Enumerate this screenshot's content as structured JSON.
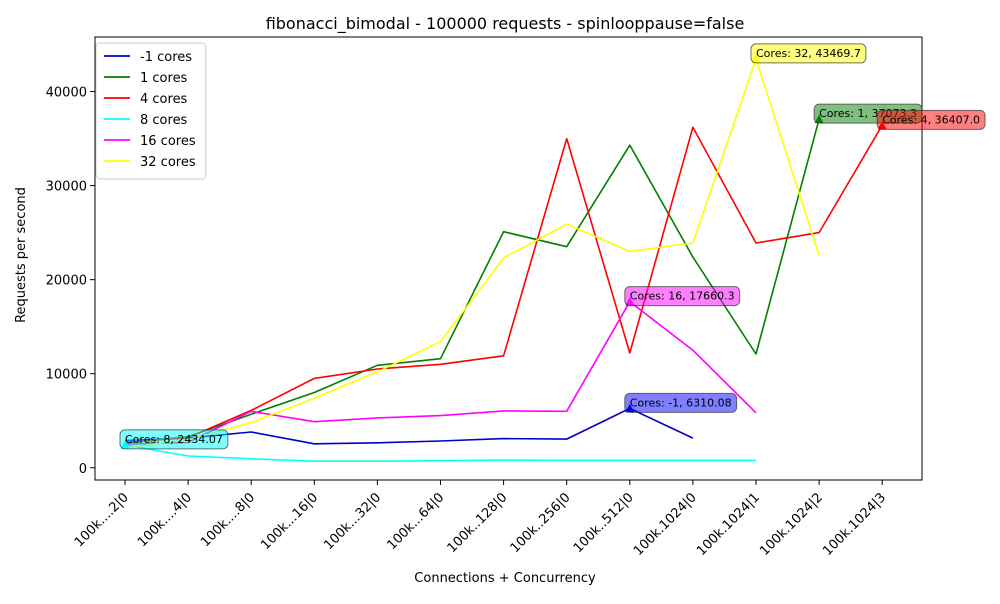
{
  "chart_data": {
    "type": "line",
    "title": "fibonacci_bimodal - 100000 requests - spinlooppause=false",
    "xlabel": "Connections + Concurrency",
    "ylabel": "Requests per second",
    "categories": [
      "100k....2|0",
      "100k....4|0",
      "100k....8|0",
      "100k...16|0",
      "100k...32|0",
      "100k...64|0",
      "100k..128|0",
      "100k..256|0",
      "100k..512|0",
      "100k.1024|0",
      "100k.1024|1",
      "100k.1024|2",
      "100k.1024|3"
    ],
    "ylim": [
      -1300,
      45800
    ],
    "yticks": [
      0,
      10000,
      20000,
      30000,
      40000
    ],
    "ytick_labels": [
      "0",
      "10000",
      "20000",
      "30000",
      "40000"
    ],
    "grid": false,
    "legend_position": "top-left",
    "series": [
      {
        "name": "-1 cores",
        "color": "#0000cc",
        "values": [
          2900,
          3150,
          3800,
          2550,
          2650,
          2850,
          3100,
          3050,
          6310.08,
          3150,
          null,
          null,
          null
        ]
      },
      {
        "name": "1 cores",
        "color": "#008000",
        "values": [
          2600,
          3300,
          5700,
          8000,
          10900,
          11600,
          25100,
          23500,
          34300,
          22400,
          12100,
          37073.3,
          null
        ]
      },
      {
        "name": "4 cores",
        "color": "#ff0000",
        "values": [
          2700,
          3200,
          6100,
          9500,
          10500,
          11000,
          11900,
          35000,
          12200,
          36200,
          23900,
          25000,
          36407.0
        ]
      },
      {
        "name": "8 cores",
        "color": "#00ffff",
        "values": [
          2434.07,
          1250,
          950,
          700,
          700,
          750,
          800,
          780,
          780,
          780,
          780,
          null,
          null
        ]
      },
      {
        "name": "16 cores",
        "color": "#ff00ff",
        "values": [
          2500,
          2700,
          6000,
          4900,
          5300,
          5550,
          6050,
          6000,
          17660.3,
          12500,
          5850,
          null,
          null
        ]
      },
      {
        "name": "32 cores",
        "color": "#ffff00",
        "values": [
          2100,
          3000,
          4800,
          7400,
          10200,
          13400,
          22300,
          25900,
          23000,
          23900,
          43469.7,
          22600,
          null
        ]
      }
    ],
    "annotations": [
      {
        "text": "Cores: -1, 6310.08",
        "series": 0,
        "index": 8,
        "color": "#0000ff"
      },
      {
        "text": "Cores: 1, 37073.3",
        "series": 1,
        "index": 11,
        "color": "#008000"
      },
      {
        "text": "Cores: 4, 36407.0",
        "series": 2,
        "index": 12,
        "color": "#ff0000"
      },
      {
        "text": "Cores: 8, 2434.07",
        "series": 3,
        "index": 0,
        "color": "#00ffff"
      },
      {
        "text": "Cores: 16, 17660.3",
        "series": 4,
        "index": 8,
        "color": "#ff00ff"
      },
      {
        "text": "Cores: 32, 43469.7",
        "series": 5,
        "index": 10,
        "color": "#ffff00"
      }
    ]
  }
}
